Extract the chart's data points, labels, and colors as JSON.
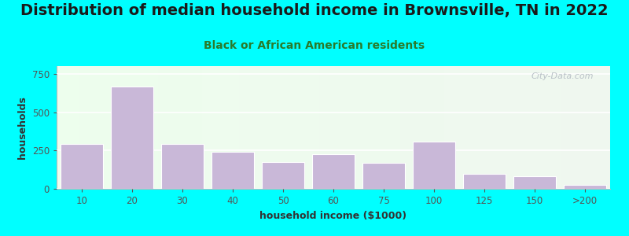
{
  "title": "Distribution of median household income in Brownsville, TN in 2022",
  "subtitle": "Black or African American residents",
  "xlabel": "household income ($1000)",
  "ylabel": "households",
  "background_outer": "#00FFFF",
  "bar_color": "#C9B8D8",
  "bar_edgecolor": "#FFFFFF",
  "categories": [
    "10",
    "20",
    "30",
    "40",
    "50",
    "60",
    "75",
    "100",
    "125",
    "150",
    ">200"
  ],
  "values": [
    290,
    665,
    290,
    240,
    175,
    225,
    168,
    310,
    100,
    83,
    28
  ],
  "ylim": [
    0,
    800
  ],
  "yticks": [
    0,
    250,
    500,
    750
  ],
  "title_fontsize": 14,
  "subtitle_fontsize": 10,
  "axis_label_fontsize": 9,
  "tick_fontsize": 8.5,
  "watermark": "City-Data.com"
}
